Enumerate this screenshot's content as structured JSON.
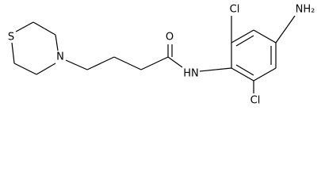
{
  "atoms": {
    "sulfur": "S",
    "amine_n": "N",
    "oxygen": "O",
    "amide_nh": "HN",
    "cl_top": "Cl",
    "cl_bottom": "Cl",
    "amino": "NH₂"
  }
}
